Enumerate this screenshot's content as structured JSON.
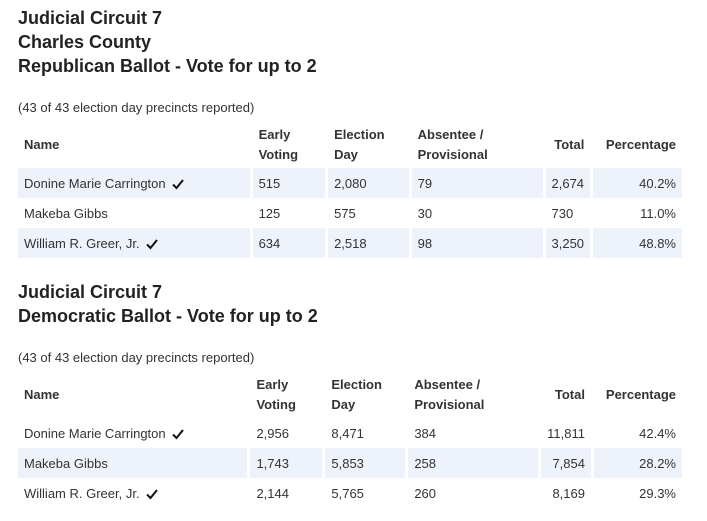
{
  "sections": [
    {
      "title_lines": [
        "Judicial Circuit 7",
        "Charles County",
        "Republican Ballot - Vote for up to 2"
      ],
      "precincts": "(43 of 43 election day precincts reported)",
      "headers": {
        "name": "Name",
        "early": [
          "Early",
          "Voting"
        ],
        "election": [
          "Election",
          "Day"
        ],
        "absentee": [
          "Absentee /",
          "Provisional"
        ],
        "total": "Total",
        "percentage": "Percentage"
      },
      "rows": [
        {
          "name": "Donine Marie Carrington",
          "winner": true,
          "early": "515",
          "election": "2,080",
          "absentee": "79",
          "total": "2,674",
          "percentage": "40.2%"
        },
        {
          "name": "Makeba Gibbs",
          "winner": false,
          "early": "125",
          "election": "575",
          "absentee": "30",
          "total": "730",
          "percentage": "11.0%"
        },
        {
          "name": "William R. Greer, Jr.",
          "winner": true,
          "early": "634",
          "election": "2,518",
          "absentee": "98",
          "total": "3,250",
          "percentage": "48.8%"
        }
      ]
    },
    {
      "title_lines": [
        "Judicial Circuit 7",
        "Democratic Ballot - Vote for up to 2"
      ],
      "precincts": "(43 of 43 election day precincts reported)",
      "headers": {
        "name": "Name",
        "early": [
          "Early",
          "Voting"
        ],
        "election": [
          "Election",
          "Day"
        ],
        "absentee": [
          "Absentee /",
          "Provisional"
        ],
        "total": "Total",
        "percentage": "Percentage"
      },
      "rows": [
        {
          "name": "Donine Marie Carrington",
          "winner": true,
          "early": "2,956",
          "election": "8,471",
          "absentee": "384",
          "total": "11,811",
          "percentage": "42.4%"
        },
        {
          "name": "Makeba Gibbs",
          "winner": false,
          "early": "1,743",
          "election": "5,853",
          "absentee": "258",
          "total": "7,854",
          "percentage": "28.2%"
        },
        {
          "name": "William R. Greer, Jr.",
          "winner": true,
          "early": "2,144",
          "election": "5,765",
          "absentee": "260",
          "total": "8,169",
          "percentage": "29.3%"
        }
      ]
    }
  ],
  "icons": {
    "winner": "checkmark-icon"
  },
  "colors": {
    "shaded_row": "#eef2fa"
  }
}
